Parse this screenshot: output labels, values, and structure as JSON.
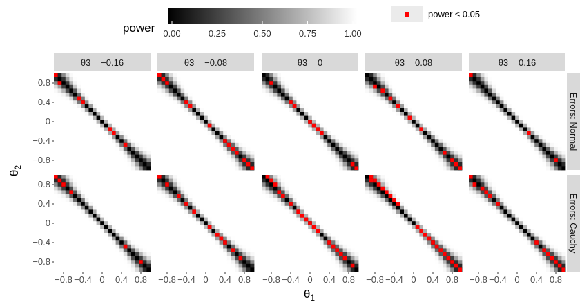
{
  "chart_data": {
    "type": "heatmap",
    "legend": {
      "fill_title": "power",
      "fill_ticks": [
        "0.00",
        "0.25",
        "0.50",
        "0.75",
        "1.00"
      ],
      "fill_range": [
        0,
        1
      ],
      "fill_colors": {
        "low": "#000000",
        "high": "#ffffff"
      },
      "marker_label": "power ≤ 0.05",
      "marker_color": "#ff0000",
      "placement": "top"
    },
    "xlabel": "θ1",
    "ylabel": "θ2",
    "x_range": [
      -1,
      1
    ],
    "y_range": [
      -1,
      1
    ],
    "x_ticks": [
      "-0.8",
      "-0.4",
      "0",
      "0.4",
      "0.8"
    ],
    "y_ticks": [
      "0.8",
      "0.4",
      "0",
      "-0.4",
      "-0.8"
    ],
    "columns": [
      {
        "label": "θ3 = −0.16",
        "theta3": -0.16
      },
      {
        "label": "θ3 = −0.08",
        "theta3": -0.08
      },
      {
        "label": "θ3 = 0",
        "theta3": 0
      },
      {
        "label": "θ3 = 0.08",
        "theta3": 0.08
      },
      {
        "label": "θ3 = 0.16",
        "theta3": 0.16
      }
    ],
    "rows": [
      {
        "label": "Errors: Normal"
      },
      {
        "label": "Errors: Cauchy"
      }
    ],
    "grid_step": 0.08,
    "description_of_field": "power is ~0 along the anti-diagonal θ2 = −θ1 and rises to 1 away from it",
    "red_points": [
      [
        [
          [
            -0.96,
            0.96
          ],
          [
            -0.88,
            0.8
          ],
          [
            -0.48,
            0.48
          ],
          [
            -0.4,
            0.4
          ],
          [
            0.16,
            -0.16
          ],
          [
            0.24,
            -0.24
          ],
          [
            0.48,
            -0.48
          ]
        ],
        [
          [
            -0.96,
            0.96
          ],
          [
            -0.88,
            0.88
          ],
          [
            -0.8,
            0.8
          ],
          [
            -0.4,
            0.4
          ],
          [
            -0.32,
            0.32
          ],
          [
            0.08,
            -0.08
          ],
          [
            0.4,
            -0.4
          ],
          [
            0.48,
            -0.48
          ],
          [
            0.56,
            -0.56
          ],
          [
            0.64,
            -0.64
          ],
          [
            0.8,
            -0.8
          ],
          [
            0.88,
            -0.88
          ],
          [
            0.96,
            -0.96
          ]
        ],
        [
          [
            -0.8,
            0.8
          ],
          [
            -0.4,
            0.4
          ],
          [
            -0.32,
            0.32
          ],
          [
            0,
            0
          ],
          [
            0.08,
            -0.08
          ],
          [
            0.16,
            -0.16
          ],
          [
            0.24,
            -0.24
          ],
          [
            0.88,
            -0.88
          ],
          [
            0.96,
            -0.96
          ]
        ],
        [
          [
            -0.8,
            0.72
          ],
          [
            -0.64,
            0.64
          ],
          [
            -0.48,
            0.48
          ],
          [
            -0.32,
            0.32
          ],
          [
            -0.08,
            0.08
          ],
          [
            0.16,
            -0.16
          ],
          [
            0.64,
            -0.64
          ],
          [
            0.8,
            -0.8
          ],
          [
            0.88,
            -0.88
          ],
          [
            0.96,
            -0.96
          ]
        ],
        [
          [
            -0.96,
            0.96
          ],
          [
            0.24,
            -0.24
          ],
          [
            0.8,
            -0.8
          ]
        ]
      ],
      [
        [
          [
            -0.96,
            0.96
          ],
          [
            -0.88,
            0.88
          ],
          [
            -0.8,
            0.8
          ],
          [
            -0.64,
            0.64
          ],
          [
            0.48,
            -0.48
          ],
          [
            0.8,
            -0.8
          ]
        ],
        [
          [
            -0.96,
            0.96
          ],
          [
            -0.8,
            0.8
          ],
          [
            -0.56,
            0.56
          ],
          [
            -0.4,
            0.4
          ],
          [
            -0.24,
            0.24
          ],
          [
            0.08,
            -0.08
          ],
          [
            0.24,
            -0.24
          ],
          [
            0.32,
            -0.32
          ],
          [
            0.4,
            -0.4
          ],
          [
            0.56,
            -0.56
          ],
          [
            0.72,
            -0.72
          ]
        ],
        [
          [
            -0.88,
            0.96
          ],
          [
            -0.8,
            0.88
          ],
          [
            -0.72,
            0.8
          ],
          [
            -0.64,
            0.64
          ],
          [
            -0.56,
            0.56
          ],
          [
            -0.4,
            0.4
          ],
          [
            -0.24,
            0.24
          ],
          [
            -0.16,
            0.16
          ],
          [
            -0.08,
            0.08
          ],
          [
            0,
            0
          ],
          [
            0.08,
            -0.08
          ],
          [
            0.16,
            -0.16
          ],
          [
            0.4,
            -0.4
          ],
          [
            0.48,
            -0.48
          ],
          [
            0.56,
            -0.56
          ],
          [
            0.64,
            -0.64
          ],
          [
            0.72,
            -0.72
          ],
          [
            0.88,
            -0.88
          ]
        ],
        [
          [
            -0.88,
            0.96
          ],
          [
            -0.88,
            0.88
          ],
          [
            -0.8,
            0.88
          ],
          [
            -0.72,
            0.8
          ],
          [
            -0.64,
            0.72
          ],
          [
            -0.56,
            0.64
          ],
          [
            -0.48,
            0.56
          ],
          [
            -0.4,
            0.48
          ],
          [
            -0.32,
            0.4
          ],
          [
            0.08,
            -0.08
          ],
          [
            0.16,
            -0.16
          ],
          [
            0.24,
            -0.24
          ],
          [
            0.32,
            -0.32
          ],
          [
            0.4,
            -0.4
          ],
          [
            0.48,
            -0.48
          ],
          [
            0.56,
            -0.56
          ],
          [
            0.64,
            -0.64
          ],
          [
            0.72,
            -0.72
          ],
          [
            0.8,
            -0.8
          ],
          [
            0.88,
            -0.88
          ],
          [
            0.96,
            -0.96
          ]
        ],
        [
          [
            -0.96,
            0.96
          ],
          [
            -0.88,
            0.8
          ],
          [
            -0.72,
            0.72
          ],
          [
            -0.64,
            0.64
          ],
          [
            -0.56,
            0.56
          ],
          [
            -0.4,
            0.4
          ],
          [
            0.4,
            -0.4
          ],
          [
            0.56,
            -0.56
          ],
          [
            0.64,
            -0.64
          ],
          [
            0.72,
            -0.72
          ],
          [
            0.8,
            -0.8
          ],
          [
            0.88,
            -0.88
          ],
          [
            0.96,
            -0.96
          ]
        ]
      ]
    ]
  }
}
